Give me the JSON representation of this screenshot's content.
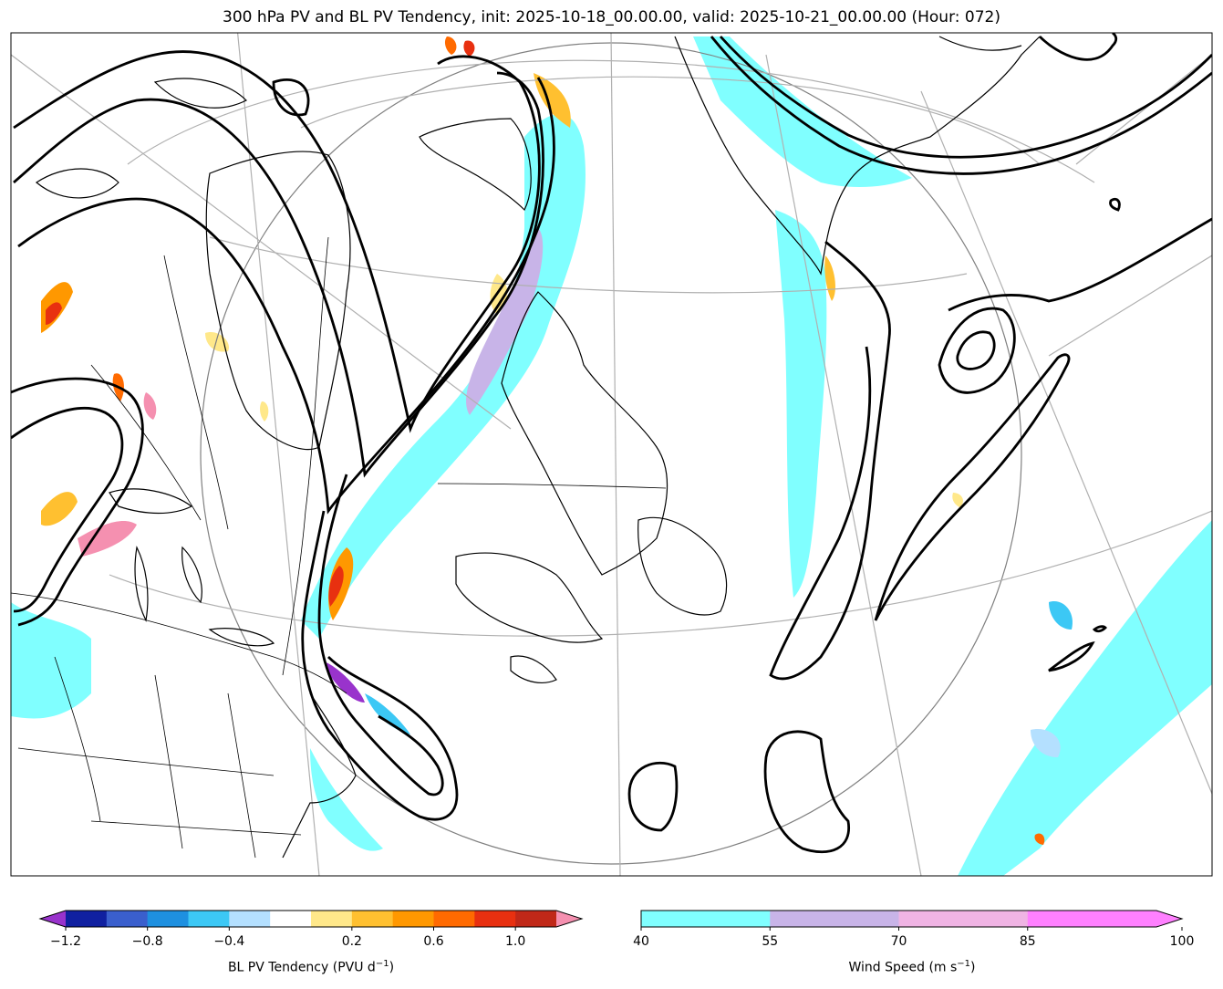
{
  "title": "300 hPa PV and BL PV Tendency, init: 2025-10-18_00.00.00, valid: 2025-10-21_00.00.00 (Hour: 072)",
  "colorbars": {
    "pv_tendency": {
      "label": "BL PV Tendency (PVU d",
      "label_sup": "−1",
      "label_end": ")",
      "ticks": [
        "−1.2",
        "−0.8",
        "−0.4",
        "0.2",
        "0.6",
        "1.0"
      ],
      "colors": [
        "#9933cc",
        "#1020a0",
        "#3a5fcd",
        "#1e90e0",
        "#3cc8f5",
        "#b4e0ff",
        "#ffffff",
        "#ffe88a",
        "#ffc030",
        "#ff9800",
        "#ff6a00",
        "#e83010",
        "#c02818",
        "#f590b0"
      ]
    },
    "wind_speed": {
      "label": "Wind Speed (m s",
      "label_sup": "−1",
      "label_end": ")",
      "ticks": [
        "40",
        "55",
        "70",
        "85",
        "100"
      ],
      "colors": [
        "#80ffff",
        "#c8b4e8",
        "#f0b4e4",
        "#ff80ff"
      ]
    }
  },
  "map_colors": {
    "wind_fill": "#80ffff",
    "jet_core": "#c8b4e8",
    "pv_contour": "#000000",
    "coastline": "#000000",
    "graticule": "#b0b0b0"
  }
}
